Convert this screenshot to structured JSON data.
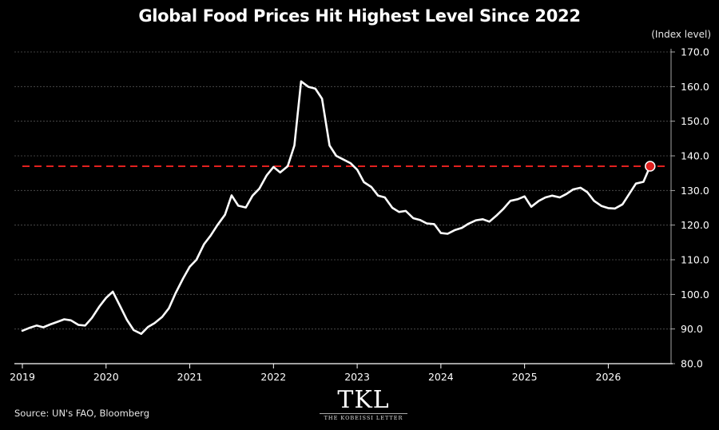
{
  "title": "Global Food Prices Hit Highest Level Since 2022",
  "source": "Source: UN's FAO, Bloomberg",
  "logo": {
    "mark": "TKL",
    "subtitle": "THE KOBEISSI LETTER"
  },
  "colors": {
    "background": "#000000",
    "line": "#ffffff",
    "reference": "#e0201f",
    "grid": "#555555"
  },
  "chart_data": {
    "type": "line",
    "title": "Global Food Prices Hit Highest Level Since 2022",
    "y_unit": "(Index level)",
    "xlabel": "",
    "ylabel": "",
    "xlim": [
      2019.0,
      2026.75
    ],
    "ylim": [
      80,
      170
    ],
    "x_ticks": [
      2019,
      2020,
      2021,
      2022,
      2023,
      2024,
      2025,
      2026
    ],
    "x_tick_labels": [
      "2019",
      "2020",
      "2021",
      "2022",
      "2023",
      "2024",
      "2025",
      "2026"
    ],
    "y_ticks": [
      80,
      90,
      100,
      110,
      120,
      130,
      140,
      150,
      160,
      170
    ],
    "y_tick_labels": [
      "80.0",
      "90.0",
      "100.0",
      "110.0",
      "120.0",
      "130.0",
      "140.0",
      "150.0",
      "160.0",
      "170.0"
    ],
    "grid": true,
    "reference_line": {
      "y": 137.0,
      "style": "dashed"
    },
    "highlight_point": {
      "x": 2026.5,
      "y": 137.0
    },
    "series": [
      {
        "x": [
          2019.0,
          2019.08,
          2019.17,
          2019.25,
          2019.33,
          2019.42,
          2019.5,
          2019.58,
          2019.67,
          2019.75,
          2019.83,
          2019.92,
          2020.0,
          2020.08,
          2020.17,
          2020.25,
          2020.33,
          2020.42,
          2020.5,
          2020.58,
          2020.67,
          2020.75,
          2020.83,
          2020.92,
          2021.0,
          2021.08,
          2021.17,
          2021.25,
          2021.33,
          2021.42,
          2021.5,
          2021.58,
          2021.67,
          2021.75,
          2021.83,
          2021.92,
          2022.0,
          2022.08,
          2022.17,
          2022.25,
          2022.33,
          2022.42,
          2022.5,
          2022.58,
          2022.67,
          2022.75,
          2022.83,
          2022.92,
          2023.0,
          2023.08,
          2023.17,
          2023.25,
          2023.33,
          2023.42,
          2023.5,
          2023.58,
          2023.67,
          2023.75,
          2023.83,
          2023.92,
          2024.0,
          2024.08,
          2024.17,
          2024.25,
          2024.33,
          2024.42,
          2024.5,
          2024.58,
          2024.67,
          2024.75,
          2024.83,
          2024.92,
          2025.0,
          2025.08,
          2025.17,
          2025.25,
          2025.33,
          2025.42,
          2025.5,
          2025.58,
          2025.67,
          2025.75,
          2025.83,
          2025.92,
          2026.0,
          2026.08,
          2026.17,
          2026.25,
          2026.33,
          2026.42,
          2026.5
        ],
        "y": [
          89.5,
          90.3,
          91.0,
          90.5,
          91.3,
          92.1,
          92.8,
          92.5,
          91.2,
          91.0,
          93.2,
          96.5,
          99.0,
          100.8,
          96.5,
          92.6,
          89.7,
          88.6,
          90.6,
          91.7,
          93.5,
          96.0,
          100.3,
          104.6,
          108.0,
          110.0,
          114.5,
          117.0,
          120.0,
          123.0,
          128.6,
          125.6,
          125.1,
          128.5,
          130.5,
          134.4,
          136.8,
          135.2,
          137.0,
          143.0,
          161.5,
          159.9,
          159.4,
          156.5,
          143.0,
          140.0,
          139.0,
          137.9,
          136.0,
          132.4,
          131.0,
          128.5,
          128.0,
          125.0,
          123.8,
          124.1,
          122.0,
          121.5,
          120.5,
          120.3,
          117.7,
          117.5,
          118.6,
          119.2,
          120.4,
          121.4,
          121.7,
          121.0,
          122.9,
          124.8,
          127.0,
          127.5,
          128.3,
          125.3,
          127.0,
          128.0,
          128.5,
          128.0,
          129.0,
          130.3,
          130.8,
          129.5,
          127.0,
          125.5,
          124.9,
          124.8,
          126.0,
          129.0,
          132.0,
          132.5,
          137.0
        ]
      }
    ]
  }
}
